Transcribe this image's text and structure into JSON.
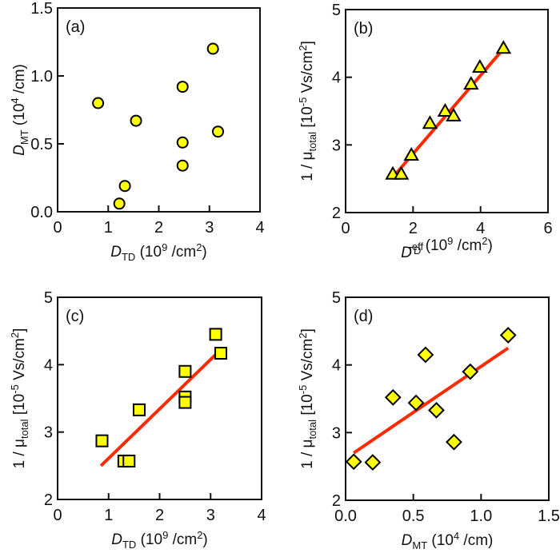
{
  "colors": {
    "marker_fill": "#ffff00",
    "marker_stroke": "#000000",
    "fit_line": "#ff2a00"
  },
  "chart_data": [
    {
      "type": "scatter",
      "panel": "(a)",
      "marker": "circle",
      "xlabel": {
        "main": "D",
        "sub": "TD",
        "unit_pre": " (10",
        "sup": "9",
        "unit_post": " /cm",
        "sup2": "2",
        "end": ")"
      },
      "ylabel": {
        "main": "D",
        "sub": "MT",
        "unit_pre": " (10",
        "sup": "4",
        "unit_post": " /cm)"
      },
      "xlim": [
        0,
        4
      ],
      "ylim": [
        0,
        1.5
      ],
      "xticks": [
        "0",
        "1",
        "2",
        "3",
        "4"
      ],
      "yticks": [
        "0.0",
        "0.5",
        "1.0",
        "1.5"
      ],
      "points": [
        [
          0.8,
          0.8
        ],
        [
          1.22,
          0.06
        ],
        [
          1.33,
          0.19
        ],
        [
          1.55,
          0.67
        ],
        [
          2.47,
          0.92
        ],
        [
          2.47,
          0.51
        ],
        [
          2.47,
          0.34
        ],
        [
          3.07,
          1.2
        ],
        [
          3.17,
          0.59
        ]
      ],
      "fit": null
    },
    {
      "type": "scatter",
      "panel": "(b)",
      "marker": "triangle",
      "xlabel": {
        "main": "D",
        "sub": "TD",
        "supx": "eff",
        "unit_pre": " (10",
        "sup": "9",
        "unit_post": " /cm",
        "sup2": "2",
        "end": ")"
      },
      "ylabel": {
        "main": "1 / μ",
        "sub": "total",
        "unit_pre": " [10",
        "sup": "-5",
        "unit_post": " Vs/cm",
        "sup2": "2",
        "end": "]"
      },
      "xlim": [
        0,
        6
      ],
      "ylim": [
        2,
        5
      ],
      "xticks": [
        "0",
        "2",
        "4",
        "6"
      ],
      "yticks": [
        "2",
        "3",
        "4",
        "5"
      ],
      "points": [
        [
          1.4,
          2.57
        ],
        [
          1.65,
          2.57
        ],
        [
          1.95,
          2.85
        ],
        [
          2.5,
          3.32
        ],
        [
          2.95,
          3.5
        ],
        [
          3.2,
          3.43
        ],
        [
          3.72,
          3.9
        ],
        [
          3.98,
          4.15
        ],
        [
          4.68,
          4.43
        ]
      ],
      "fit": [
        [
          1.5,
          2.58
        ],
        [
          4.68,
          4.42
        ]
      ]
    },
    {
      "type": "scatter",
      "panel": "(c)",
      "marker": "square",
      "xlabel": {
        "main": "D",
        "sub": "TD",
        "unit_pre": " (10",
        "sup": "9",
        "unit_post": " /cm",
        "sup2": "2",
        "end": ")"
      },
      "ylabel": {
        "main": "1 / μ",
        "sub": "total",
        "unit_pre": " [10",
        "sup": "-5",
        "unit_post": " Vs/cm",
        "sup2": "2",
        "end": "]"
      },
      "xlim": [
        0,
        4
      ],
      "ylim": [
        2,
        5
      ],
      "xticks": [
        "0",
        "1",
        "2",
        "3",
        "4"
      ],
      "yticks": [
        "2",
        "3",
        "4",
        "5"
      ],
      "points": [
        [
          0.87,
          2.87
        ],
        [
          1.3,
          2.57
        ],
        [
          1.4,
          2.57
        ],
        [
          1.6,
          3.33
        ],
        [
          2.5,
          3.9
        ],
        [
          2.5,
          3.52
        ],
        [
          2.5,
          3.44
        ],
        [
          3.1,
          4.45
        ],
        [
          3.2,
          4.17
        ]
      ],
      "fit": [
        [
          0.85,
          2.5
        ],
        [
          3.1,
          4.15
        ]
      ]
    },
    {
      "type": "scatter",
      "panel": "(d)",
      "marker": "diamond",
      "xlabel": {
        "main": "D",
        "sub": "MT",
        "unit_pre": " (10",
        "sup": "4",
        "unit_post": " /cm)"
      },
      "ylabel": {
        "main": "1 / μ",
        "sub": "total",
        "unit_pre": " [10",
        "sup": "-5",
        "unit_post": " Vs/cm",
        "sup2": "2",
        "end": "]"
      },
      "xlim": [
        0,
        1.5
      ],
      "ylim": [
        2,
        5
      ],
      "xticks": [
        "0.0",
        "0.5",
        "1.0",
        "1.5"
      ],
      "yticks": [
        "2",
        "3",
        "4",
        "5"
      ],
      "points": [
        [
          0.06,
          2.57
        ],
        [
          0.2,
          2.56
        ],
        [
          0.35,
          3.52
        ],
        [
          0.52,
          3.44
        ],
        [
          0.59,
          4.15
        ],
        [
          0.67,
          3.33
        ],
        [
          0.8,
          2.86
        ],
        [
          0.92,
          3.9
        ],
        [
          1.2,
          4.44
        ]
      ],
      "fit": [
        [
          0.06,
          2.7
        ],
        [
          1.2,
          4.25
        ]
      ]
    }
  ]
}
